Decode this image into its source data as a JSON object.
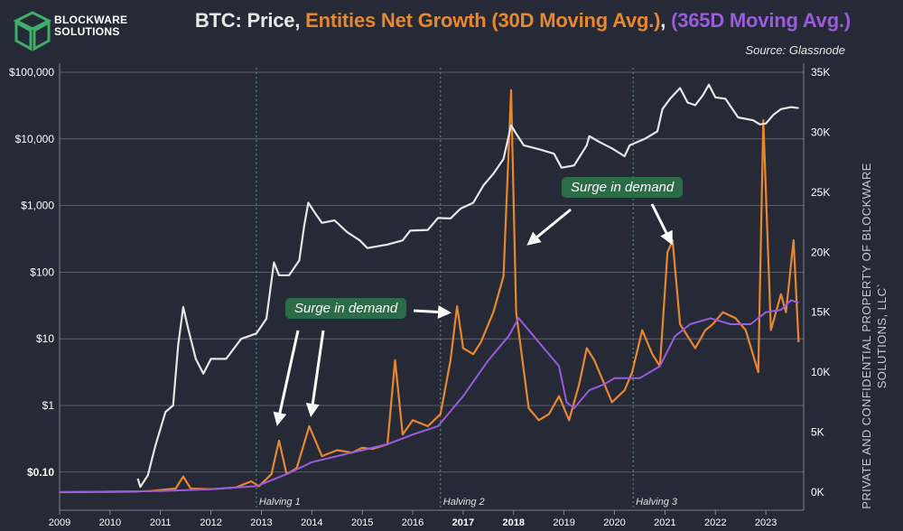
{
  "title": {
    "part1": "BTC: Price, ",
    "part2": "Entities Net Growth (30D Moving Avg.)",
    "part3": ", ",
    "part4": "(365D Moving Avg.)",
    "color_price": "#e8e8e8",
    "color_growth": "#e8882e",
    "color_avg": "#9a5bdc"
  },
  "source": "Source: Glassnode",
  "logo": {
    "line1": "BLOCKWARE",
    "line2": "SOLUTIONS",
    "color": "#3fae6a"
  },
  "watermark": {
    "line1": "PRIVATE AND CONFIDENTIAL PROPERTY OF BLOCKWARE",
    "line2": "SOLUTIONS, LLC`"
  },
  "annotations": [
    {
      "text": "Surge in demand"
    },
    {
      "text": "Surge in demand"
    }
  ],
  "chart_data": {
    "type": "line",
    "x_ticks": [
      "2009",
      "2010",
      "2011",
      "2012",
      "2013",
      "2014",
      "2015",
      "2016",
      "2017",
      "2018",
      "2019",
      "2020",
      "2021",
      "2022",
      "2023"
    ],
    "bold_ticks": [
      "2017",
      "2018"
    ],
    "xlim": [
      2009,
      2023.75
    ],
    "left_axis": {
      "scale": "log",
      "ylim": [
        0.05,
        100000
      ],
      "ticks": [
        "$0.10",
        "$1",
        "$10",
        "$100",
        "$1,000",
        "$10,000",
        "$100,000"
      ],
      "tick_values": [
        0.1,
        1,
        10,
        100,
        1000,
        10000,
        100000
      ]
    },
    "right_axis": {
      "scale": "linear",
      "ylim": [
        0,
        35000
      ],
      "ticks": [
        "0K",
        "5K",
        "10K",
        "15K",
        "20K",
        "25K",
        "30K",
        "35K"
      ],
      "tick_values": [
        0,
        5000,
        10000,
        15000,
        20000,
        25000,
        30000,
        35000
      ]
    },
    "halvings": [
      {
        "label": "Halving 1",
        "x": 2012.9
      },
      {
        "label": "Halving 2",
        "x": 2016.55
      },
      {
        "label": "Halving 3",
        "x": 2020.37
      }
    ],
    "grid": true,
    "series": [
      {
        "name": "Price",
        "axis": "left",
        "color": "#e6e6e6",
        "points": [
          [
            2010.55,
            0.08
          ],
          [
            2010.6,
            0.06
          ],
          [
            2010.75,
            0.09
          ],
          [
            2010.9,
            0.25
          ],
          [
            2011.1,
            0.8
          ],
          [
            2011.25,
            1.0
          ],
          [
            2011.35,
            8
          ],
          [
            2011.45,
            30
          ],
          [
            2011.55,
            14
          ],
          [
            2011.7,
            5
          ],
          [
            2011.85,
            3
          ],
          [
            2012.0,
            5
          ],
          [
            2012.3,
            5
          ],
          [
            2012.6,
            10
          ],
          [
            2012.9,
            12
          ],
          [
            2013.1,
            20
          ],
          [
            2013.25,
            140
          ],
          [
            2013.35,
            90
          ],
          [
            2013.55,
            90
          ],
          [
            2013.75,
            150
          ],
          [
            2013.85,
            500
          ],
          [
            2013.93,
            1100
          ],
          [
            2014.05,
            800
          ],
          [
            2014.2,
            550
          ],
          [
            2014.45,
            600
          ],
          [
            2014.7,
            400
          ],
          [
            2014.95,
            300
          ],
          [
            2015.1,
            230
          ],
          [
            2015.5,
            260
          ],
          [
            2015.8,
            300
          ],
          [
            2015.95,
            420
          ],
          [
            2016.3,
            430
          ],
          [
            2016.5,
            650
          ],
          [
            2016.75,
            640
          ],
          [
            2016.95,
            900
          ],
          [
            2017.2,
            1100
          ],
          [
            2017.4,
            2000
          ],
          [
            2017.6,
            3000
          ],
          [
            2017.8,
            5000
          ],
          [
            2017.95,
            16000
          ],
          [
            2018.05,
            12000
          ],
          [
            2018.2,
            8000
          ],
          [
            2018.5,
            7000
          ],
          [
            2018.8,
            6000
          ],
          [
            2018.95,
            3700
          ],
          [
            2019.2,
            4000
          ],
          [
            2019.45,
            8000
          ],
          [
            2019.5,
            11000
          ],
          [
            2019.7,
            9000
          ],
          [
            2019.95,
            7200
          ],
          [
            2020.2,
            5500
          ],
          [
            2020.3,
            8000
          ],
          [
            2020.6,
            10000
          ],
          [
            2020.85,
            13000
          ],
          [
            2020.95,
            28000
          ],
          [
            2021.1,
            40000
          ],
          [
            2021.3,
            58000
          ],
          [
            2021.45,
            35000
          ],
          [
            2021.6,
            32000
          ],
          [
            2021.75,
            45000
          ],
          [
            2021.87,
            65000
          ],
          [
            2022.0,
            42000
          ],
          [
            2022.2,
            40000
          ],
          [
            2022.45,
            21000
          ],
          [
            2022.75,
            19000
          ],
          [
            2022.88,
            16500
          ],
          [
            2023.0,
            17000
          ],
          [
            2023.15,
            23000
          ],
          [
            2023.3,
            28000
          ],
          [
            2023.5,
            30000
          ],
          [
            2023.65,
            29000
          ]
        ]
      },
      {
        "name": "Entities Net Growth (30D Moving Avg.)",
        "axis": "right",
        "color": "#e8882e",
        "points": [
          [
            2009.0,
            0
          ],
          [
            2010.5,
            50
          ],
          [
            2010.8,
            100
          ],
          [
            2011.3,
            300
          ],
          [
            2011.45,
            1300
          ],
          [
            2011.6,
            300
          ],
          [
            2012.0,
            250
          ],
          [
            2012.5,
            400
          ],
          [
            2012.8,
            900
          ],
          [
            2012.95,
            500
          ],
          [
            2013.2,
            1500
          ],
          [
            2013.35,
            4300
          ],
          [
            2013.5,
            1500
          ],
          [
            2013.7,
            2000
          ],
          [
            2013.95,
            5500
          ],
          [
            2014.2,
            3000
          ],
          [
            2014.5,
            3500
          ],
          [
            2014.8,
            3300
          ],
          [
            2015.0,
            3700
          ],
          [
            2015.2,
            3600
          ],
          [
            2015.5,
            4000
          ],
          [
            2015.65,
            11000
          ],
          [
            2015.8,
            4800
          ],
          [
            2016.0,
            6000
          ],
          [
            2016.3,
            5500
          ],
          [
            2016.55,
            6500
          ],
          [
            2016.75,
            11000
          ],
          [
            2016.88,
            15500
          ],
          [
            2017.0,
            12000
          ],
          [
            2017.2,
            11500
          ],
          [
            2017.35,
            12500
          ],
          [
            2017.6,
            15000
          ],
          [
            2017.8,
            18000
          ],
          [
            2017.95,
            33500
          ],
          [
            2018.05,
            15000
          ],
          [
            2018.3,
            7000
          ],
          [
            2018.5,
            6000
          ],
          [
            2018.7,
            6500
          ],
          [
            2018.9,
            8000
          ],
          [
            2019.1,
            6000
          ],
          [
            2019.3,
            9000
          ],
          [
            2019.45,
            12000
          ],
          [
            2019.6,
            11000
          ],
          [
            2019.8,
            9000
          ],
          [
            2019.95,
            7500
          ],
          [
            2020.2,
            8500
          ],
          [
            2020.35,
            10000
          ],
          [
            2020.55,
            13500
          ],
          [
            2020.75,
            11500
          ],
          [
            2020.9,
            10500
          ],
          [
            2021.05,
            20000
          ],
          [
            2021.15,
            21000
          ],
          [
            2021.3,
            14000
          ],
          [
            2021.6,
            12000
          ],
          [
            2021.8,
            13500
          ],
          [
            2021.95,
            14000
          ],
          [
            2022.15,
            15000
          ],
          [
            2022.4,
            14500
          ],
          [
            2022.6,
            13500
          ],
          [
            2022.85,
            10000
          ],
          [
            2022.95,
            31000
          ],
          [
            2023.1,
            13500
          ],
          [
            2023.3,
            16500
          ],
          [
            2023.4,
            15000
          ],
          [
            2023.55,
            21000
          ],
          [
            2023.65,
            12500
          ]
        ]
      },
      {
        "name": "(365D Moving Avg.)",
        "axis": "right",
        "color": "#9a5bdc",
        "points": [
          [
            2009.0,
            0
          ],
          [
            2011.0,
            100
          ],
          [
            2012.0,
            250
          ],
          [
            2012.9,
            500
          ],
          [
            2013.5,
            1500
          ],
          [
            2014.0,
            2500
          ],
          [
            2014.5,
            3000
          ],
          [
            2015.0,
            3500
          ],
          [
            2015.5,
            4000
          ],
          [
            2016.0,
            4800
          ],
          [
            2016.5,
            5500
          ],
          [
            2017.0,
            8000
          ],
          [
            2017.5,
            11000
          ],
          [
            2017.9,
            13000
          ],
          [
            2018.1,
            14500
          ],
          [
            2018.3,
            13500
          ],
          [
            2018.6,
            12000
          ],
          [
            2018.9,
            10500
          ],
          [
            2019.05,
            7500
          ],
          [
            2019.2,
            7000
          ],
          [
            2019.5,
            8500
          ],
          [
            2019.8,
            9000
          ],
          [
            2020.0,
            9500
          ],
          [
            2020.5,
            9500
          ],
          [
            2020.9,
            10500
          ],
          [
            2021.2,
            13000
          ],
          [
            2021.5,
            14000
          ],
          [
            2021.9,
            14500
          ],
          [
            2022.3,
            14000
          ],
          [
            2022.7,
            14000
          ],
          [
            2023.0,
            15000
          ],
          [
            2023.3,
            15200
          ],
          [
            2023.5,
            16000
          ],
          [
            2023.65,
            15800
          ]
        ]
      }
    ]
  }
}
